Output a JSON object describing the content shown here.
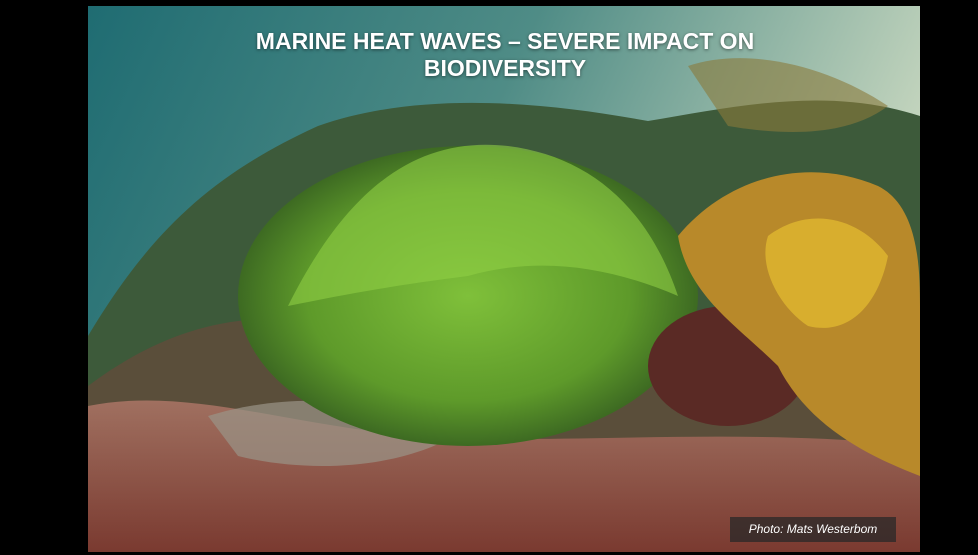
{
  "slide": {
    "title": "MARINE HEAT WAVES – SEVERE IMPACT ON BIODIVERSITY",
    "photo_credit": "Photo: Mats Westerbom"
  }
}
